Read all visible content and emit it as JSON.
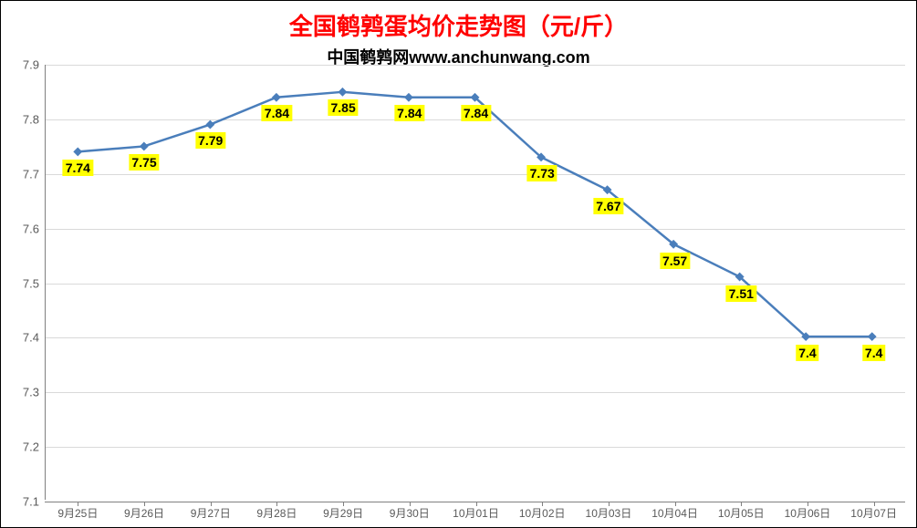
{
  "chart": {
    "type": "line",
    "title": "全国鹌鹑蛋均价走势图（元/斤）",
    "title_color": "#ff0000",
    "title_fontsize": 26,
    "subtitle": "中国鹌鹑网www.anchunwang.com",
    "subtitle_color": "#000000",
    "subtitle_fontsize": 18,
    "background_color": "#ffffff",
    "border_color": "#000000",
    "line_color": "#4a7ebb",
    "line_width": 2.5,
    "marker_style": "diamond",
    "marker_size": 7,
    "marker_color": "#4a7ebb",
    "grid_color": "#d9d9d9",
    "axis_line_color": "#808080",
    "tick_label_color": "#595959",
    "data_label_bg": "#ffff00",
    "data_label_color": "#000000",
    "data_label_fontsize": 14,
    "ylim": [
      7.1,
      7.9
    ],
    "ytick_step": 0.1,
    "yticks": [
      "7.1",
      "7.2",
      "7.3",
      "7.4",
      "7.5",
      "7.6",
      "7.7",
      "7.8",
      "7.9"
    ],
    "categories": [
      "9月25日",
      "9月26日",
      "9月27日",
      "9月28日",
      "9月29日",
      "9月30日",
      "10月01日",
      "10月02日",
      "10月03日",
      "10月04日",
      "10月05日",
      "10月06日",
      "10月07日"
    ],
    "values": [
      7.74,
      7.75,
      7.79,
      7.84,
      7.85,
      7.84,
      7.84,
      7.73,
      7.67,
      7.57,
      7.51,
      7.4,
      7.4
    ],
    "value_labels": [
      "7.74",
      "7.75",
      "7.79",
      "7.84",
      "7.85",
      "7.84",
      "7.84",
      "7.73",
      "7.67",
      "7.57",
      "7.51",
      "7.4",
      "7.4"
    ]
  }
}
